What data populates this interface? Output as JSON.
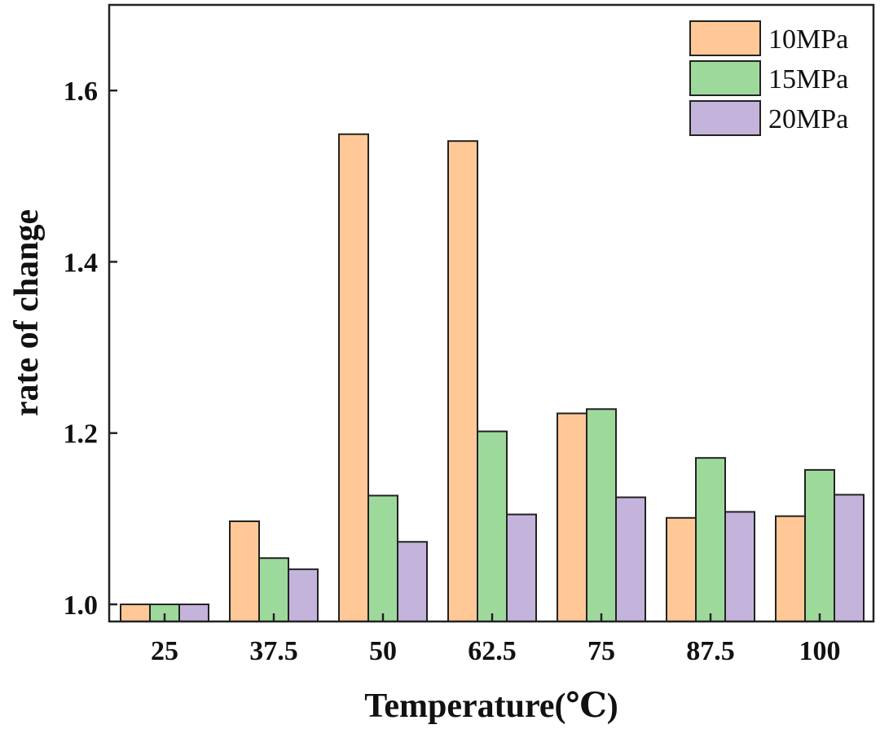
{
  "chart_data": {
    "type": "bar",
    "title": "",
    "xlabel": "Temperature(℃)",
    "ylabel": "rate of change",
    "categories": [
      "25",
      "37.5",
      "50",
      "62.5",
      "75",
      "87.5",
      "100"
    ],
    "series": [
      {
        "name": "10MPa",
        "color": "#FFC896",
        "values": [
          1.0,
          1.097,
          1.549,
          1.541,
          1.223,
          1.101,
          1.103
        ]
      },
      {
        "name": "15MPa",
        "color": "#9ED99C",
        "values": [
          1.0,
          1.054,
          1.127,
          1.202,
          1.228,
          1.171,
          1.157
        ]
      },
      {
        "name": "20MPa",
        "color": "#C4B3DA",
        "values": [
          1.0,
          1.041,
          1.073,
          1.105,
          1.125,
          1.108,
          1.128
        ]
      }
    ],
    "ylim": [
      0.98,
      1.7
    ],
    "yticks": [
      "1.0",
      "1.2",
      "1.4",
      "1.6"
    ],
    "ytick_values": [
      1.0,
      1.2,
      1.4,
      1.6
    ],
    "legend_position": "top-right",
    "grid": false
  }
}
